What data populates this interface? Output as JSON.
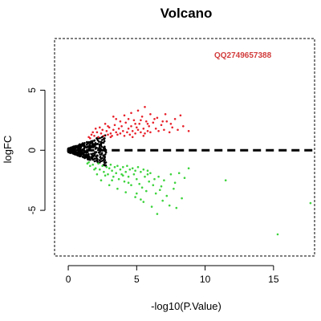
{
  "chart_data": {
    "type": "scatter",
    "title": "Volcano",
    "xlabel": "-log10(P.Value)",
    "ylabel": "logFC",
    "xlim": [
      -1,
      18
    ],
    "ylim": [
      -8.8,
      9.3
    ],
    "x_ticks": [
      0,
      5,
      10,
      15
    ],
    "y_ticks": [
      -5,
      0,
      5
    ],
    "grid": false,
    "annotation": "QQ2749657388",
    "annotation_color": "#d23b3b",
    "threshold_line": {
      "y": 0,
      "style": "dashed",
      "color": "#000000",
      "x_range": [
        1.3,
        18
      ]
    },
    "colors": {
      "up": "#e8202a",
      "down": "#3ed43e",
      "ns": "#000000"
    },
    "series": [
      {
        "name": "up",
        "points": [
          [
            1.5,
            1.1
          ],
          [
            1.7,
            1.3
          ],
          [
            1.9,
            1.2
          ],
          [
            2.1,
            1.5
          ],
          [
            2.2,
            1.1
          ],
          [
            2.4,
            1.4
          ],
          [
            2.5,
            1.7
          ],
          [
            2.6,
            1.2
          ],
          [
            2.8,
            1.6
          ],
          [
            2.9,
            1.3
          ],
          [
            3.0,
            1.9
          ],
          [
            3.1,
            1.4
          ],
          [
            3.2,
            1.2
          ],
          [
            3.3,
            1.7
          ],
          [
            3.4,
            2.1
          ],
          [
            3.5,
            1.5
          ],
          [
            3.6,
            1.3
          ],
          [
            3.7,
            1.8
          ],
          [
            3.8,
            1.4
          ],
          [
            3.9,
            2.0
          ],
          [
            4.0,
            1.6
          ],
          [
            4.1,
            1.2
          ],
          [
            4.2,
            2.3
          ],
          [
            4.3,
            1.5
          ],
          [
            4.4,
            1.8
          ],
          [
            4.5,
            1.3
          ],
          [
            4.6,
            2.0
          ],
          [
            4.7,
            1.6
          ],
          [
            4.8,
            2.5
          ],
          [
            4.9,
            1.4
          ],
          [
            5.0,
            1.9
          ],
          [
            5.1,
            1.7
          ],
          [
            5.2,
            2.2
          ],
          [
            5.3,
            1.5
          ],
          [
            5.4,
            2.8
          ],
          [
            5.5,
            1.8
          ],
          [
            5.6,
            1.4
          ],
          [
            5.7,
            2.4
          ],
          [
            5.8,
            1.6
          ],
          [
            5.9,
            2.0
          ],
          [
            6.0,
            1.5
          ],
          [
            6.2,
            2.3
          ],
          [
            6.4,
            1.8
          ],
          [
            6.6,
            1.6
          ],
          [
            6.8,
            2.1
          ],
          [
            7.0,
            1.7
          ],
          [
            7.2,
            2.4
          ],
          [
            7.4,
            1.5
          ],
          [
            7.6,
            1.9
          ],
          [
            8.0,
            1.7
          ],
          [
            8.4,
            2.0
          ],
          [
            8.8,
            1.6
          ],
          [
            2.0,
            1.8
          ],
          [
            2.7,
            2.2
          ],
          [
            3.5,
            2.6
          ],
          [
            4.1,
            2.9
          ],
          [
            4.6,
            3.1
          ],
          [
            5.1,
            3.3
          ],
          [
            5.6,
            3.6
          ],
          [
            6.0,
            3.0
          ],
          [
            6.5,
            2.7
          ],
          [
            7.1,
            3.0
          ],
          [
            7.8,
            2.6
          ],
          [
            8.2,
            2.9
          ],
          [
            3.3,
            2.8
          ],
          [
            4.4,
            2.6
          ],
          [
            5.3,
            2.5
          ],
          [
            6.3,
            2.6
          ],
          [
            2.3,
            1.9
          ],
          [
            3.8,
            2.4
          ],
          [
            1.6,
            1.0
          ],
          [
            1.8,
            1.5
          ],
          [
            2.9,
            2.0
          ],
          [
            4.9,
            2.2
          ],
          [
            5.8,
            2.2
          ],
          [
            6.9,
            2.4
          ],
          [
            7.5,
            2.2
          ],
          [
            3.1,
            1.1
          ],
          [
            4.7,
            1.1
          ],
          [
            5.5,
            1.2
          ]
        ]
      },
      {
        "name": "down",
        "points": [
          [
            1.4,
            -1.1
          ],
          [
            1.6,
            -1.3
          ],
          [
            1.8,
            -1.2
          ],
          [
            2.0,
            -1.5
          ],
          [
            2.2,
            -1.1
          ],
          [
            2.3,
            -1.6
          ],
          [
            2.5,
            -1.3
          ],
          [
            2.6,
            -1.8
          ],
          [
            2.8,
            -1.4
          ],
          [
            2.9,
            -2.0
          ],
          [
            3.0,
            -1.5
          ],
          [
            3.1,
            -1.2
          ],
          [
            3.2,
            -1.7
          ],
          [
            3.3,
            -2.2
          ],
          [
            3.4,
            -1.4
          ],
          [
            3.5,
            -1.9
          ],
          [
            3.6,
            -1.3
          ],
          [
            3.7,
            -2.4
          ],
          [
            3.8,
            -1.6
          ],
          [
            3.9,
            -2.0
          ],
          [
            4.0,
            -1.4
          ],
          [
            4.1,
            -2.6
          ],
          [
            4.2,
            -1.8
          ],
          [
            4.3,
            -1.3
          ],
          [
            4.4,
            -2.2
          ],
          [
            4.5,
            -1.6
          ],
          [
            4.6,
            -2.9
          ],
          [
            4.7,
            -1.5
          ],
          [
            4.8,
            -2.0
          ],
          [
            4.9,
            -1.7
          ],
          [
            5.0,
            -2.4
          ],
          [
            5.1,
            -1.4
          ],
          [
            5.2,
            -2.8
          ],
          [
            5.3,
            -1.8
          ],
          [
            5.4,
            -3.1
          ],
          [
            5.5,
            -1.6
          ],
          [
            5.6,
            -2.2
          ],
          [
            5.7,
            -3.4
          ],
          [
            5.8,
            -1.7
          ],
          [
            5.9,
            -2.6
          ],
          [
            6.0,
            -1.9
          ],
          [
            6.2,
            -2.9
          ],
          [
            6.4,
            -3.6
          ],
          [
            6.6,
            -2.2
          ],
          [
            6.8,
            -3.0
          ],
          [
            7.0,
            -2.5
          ],
          [
            7.2,
            -3.8
          ],
          [
            7.5,
            -2.0
          ],
          [
            7.8,
            -2.7
          ],
          [
            8.1,
            -1.9
          ],
          [
            8.5,
            -2.3
          ],
          [
            8.8,
            -1.5
          ],
          [
            2.4,
            -2.5
          ],
          [
            3.0,
            -2.9
          ],
          [
            3.6,
            -3.2
          ],
          [
            4.2,
            -3.5
          ],
          [
            4.9,
            -3.9
          ],
          [
            5.5,
            -4.3
          ],
          [
            6.1,
            -4.7
          ],
          [
            5.0,
            -3.6
          ],
          [
            6.9,
            -4.2
          ],
          [
            7.4,
            -4.6
          ],
          [
            6.5,
            -5.3
          ],
          [
            7.9,
            -4.8
          ],
          [
            4.4,
            -2.7
          ],
          [
            3.2,
            -2.5
          ],
          [
            2.7,
            -2.1
          ],
          [
            5.3,
            -4.1
          ],
          [
            6.7,
            -3.3
          ],
          [
            7.7,
            -3.2
          ],
          [
            1.5,
            -1.0
          ],
          [
            1.9,
            -1.6
          ],
          [
            2.1,
            -2.0
          ],
          [
            11.5,
            -2.5
          ],
          [
            17.7,
            -4.4
          ],
          [
            15.3,
            -7.0
          ],
          [
            8.3,
            -4.0
          ],
          [
            4.0,
            -2.1
          ],
          [
            5.8,
            -2.0
          ],
          [
            6.3,
            -2.4
          ]
        ]
      }
    ]
  }
}
